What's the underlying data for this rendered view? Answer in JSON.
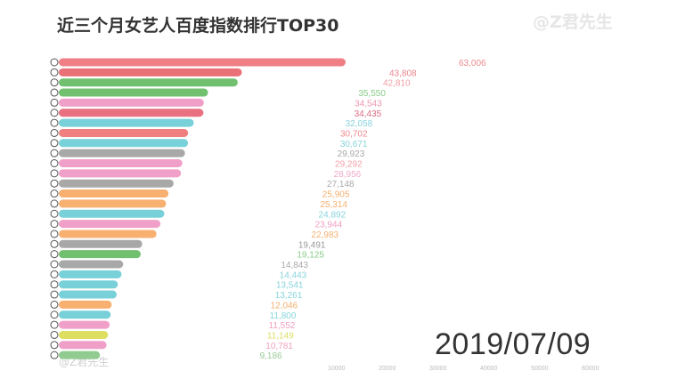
{
  "title": "近三个月女艺人百度指数排行TOP30",
  "watermark": "@Z君先生",
  "date": "2019/07/09",
  "chart_data": {
    "type": "bar",
    "orientation": "horizontal",
    "title": "近三个月女艺人百度指数排行TOP30",
    "xlim": [
      0,
      63006
    ],
    "x_ticks": [
      "10000",
      "20000",
      "30000",
      "40000",
      "50000",
      "60000"
    ],
    "values": [
      63006,
      43808,
      42810,
      35550,
      34543,
      34435,
      32058,
      30702,
      30671,
      29923,
      29292,
      28956,
      27148,
      25905,
      25314,
      24892,
      23944,
      22983,
      19491,
      19125,
      14843,
      14443,
      13541,
      13261,
      12046,
      11800,
      11552,
      11149,
      10781,
      9186
    ],
    "labels": [
      "63,006",
      "43,808",
      "42,810",
      "35,550",
      "34,543",
      "34,435",
      "32,058",
      "30,702",
      "30,671",
      "29,923",
      "29,292",
      "28,956",
      "27,148",
      "25,905",
      "25,314",
      "24,892",
      "23,944",
      "22,983",
      "19,491",
      "19,125",
      "14,843",
      "14,443",
      "13,541",
      "13,261",
      "12,046",
      "11,800",
      "11,552",
      "11,149",
      "10,781",
      "9,186"
    ],
    "colors": [
      "#ee8a8f",
      "#e9848c",
      "#f2a0a6",
      "#88cc88",
      "#ee98b0",
      "#d96c80",
      "#88d4dc",
      "#ee8a8f",
      "#88d4dc",
      "#aaaaaa",
      "#f2a0a6",
      "#eeaacc",
      "#aaaaaa",
      "#f7b070",
      "#f5b070",
      "#88d4dc",
      "#f0a0c0",
      "#f5b070",
      "#999999",
      "#88cc88",
      "#aaaaaa",
      "#88d4dc",
      "#88d4dc",
      "#88d4dc",
      "#f5b070",
      "#88d4dc",
      "#f0a0c0",
      "#dddd66",
      "#f0a0c0",
      "#99cc99"
    ],
    "bar_colors": [
      "#ef7f84",
      "#ea7078",
      "#70c070",
      "#70c070",
      "#f0a0c8",
      "#e97080",
      "#78d0d8",
      "#f08080",
      "#78d0d8",
      "#a8a8a8",
      "#f0a0c8",
      "#f0a0c8",
      "#a8a8a8",
      "#f8b070",
      "#f8b070",
      "#78d0d8",
      "#f0a0c8",
      "#f8b070",
      "#a8a8a8",
      "#70c070",
      "#a8a8a8",
      "#78d0d8",
      "#78d0d8",
      "#78d0d8",
      "#f8b070",
      "#78d0d8",
      "#f0a0c8",
      "#dede60",
      "#f0a0c8",
      "#90cc90"
    ],
    "grid": false
  }
}
